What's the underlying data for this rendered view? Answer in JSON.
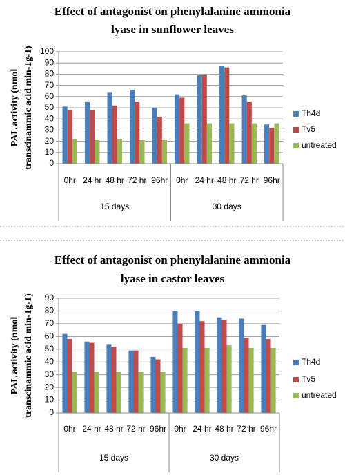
{
  "chart_data": [
    {
      "type": "bar",
      "title": [
        "Effect of antagonist on phenylalanine ammonia",
        "lyase in sunflower leaves"
      ],
      "y_label": [
        "PAL activity (nmol",
        "transcinammic acid min-1g-1)"
      ],
      "categories": [
        "0hr",
        "24 hr",
        "48 hr",
        "72 hr",
        "96hr",
        "0hr",
        "24 hr",
        "48 hr",
        "72 hr",
        "96hr"
      ],
      "group_labels": [
        "15 days",
        "30 days"
      ],
      "series": [
        {
          "name": "Th4d",
          "color": "#4a7ebb",
          "values": [
            51,
            55,
            64,
            66,
            50,
            62,
            79,
            87,
            61,
            35
          ]
        },
        {
          "name": "Tv5",
          "color": "#be4b48",
          "values": [
            48,
            48,
            52,
            55,
            42,
            59,
            79,
            86,
            55,
            32
          ]
        },
        {
          "name": "untreated",
          "color": "#98b954",
          "values": [
            22,
            21,
            22,
            21,
            21,
            36,
            36,
            36,
            36,
            36
          ]
        }
      ],
      "ylim": [
        0,
        100
      ],
      "yticks": [
        0,
        10,
        20,
        30,
        40,
        50,
        60,
        70,
        80,
        90,
        100
      ],
      "grid": true,
      "legend": "right"
    },
    {
      "type": "bar",
      "title": [
        "Effect of antagonist on phenylalanine ammonia",
        "lyase in castor leaves"
      ],
      "y_label": [
        "PAL activity (nmol",
        "transcinammic acid min-1g-1)"
      ],
      "categories": [
        "0hr",
        "24 hr",
        "48 hr",
        "72 hr",
        "96hr",
        "0hr",
        "24 hr",
        "48 hr",
        "72 hr",
        "96hr"
      ],
      "group_labels": [
        "15 days",
        "30 days"
      ],
      "series": [
        {
          "name": "Th4d",
          "color": "#4a7ebb",
          "values": [
            62,
            56,
            54,
            49,
            44,
            80,
            80,
            75,
            74,
            69
          ]
        },
        {
          "name": "Tv5",
          "color": "#be4b48",
          "values": [
            58,
            55,
            52,
            49,
            42,
            70,
            72,
            73,
            59,
            58
          ]
        },
        {
          "name": "untreated",
          "color": "#98b954",
          "values": [
            32,
            32,
            32,
            32,
            32,
            51,
            51,
            53,
            51,
            51
          ]
        }
      ],
      "ylim": [
        0,
        90
      ],
      "yticks": [
        0,
        10,
        20,
        30,
        40,
        50,
        60,
        70,
        80,
        90
      ],
      "grid": true,
      "legend": "right"
    }
  ]
}
